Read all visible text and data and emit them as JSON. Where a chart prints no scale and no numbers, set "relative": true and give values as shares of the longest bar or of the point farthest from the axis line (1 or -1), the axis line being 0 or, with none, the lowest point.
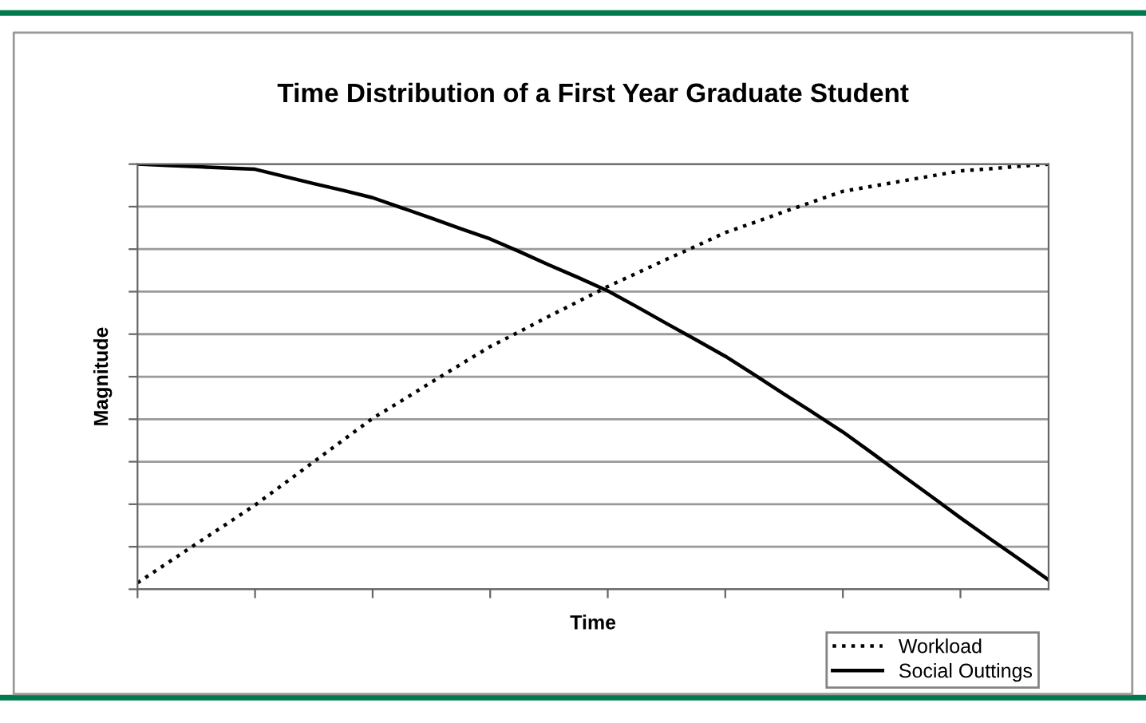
{
  "chart_data": {
    "type": "line",
    "title": "Time Distribution of a First Year Graduate Student",
    "xlabel": "Time",
    "ylabel": "Magnitude",
    "relative": true,
    "grid": "y",
    "legend": "bottom right",
    "categories": [
      null,
      null,
      null,
      null,
      null,
      null,
      null,
      null,
      null,
      null,
      null,
      null,
      null,
      null,
      null,
      null,
      null,
      null,
      null,
      null,
      null,
      null,
      null,
      null,
      null,
      null,
      null,
      null,
      null,
      null,
      null,
      null
    ],
    "series": [
      {
        "name": "Workload",
        "color": "#000000",
        "line_style": "dotted",
        "values": [
          0.015,
          0.061,
          0.107,
          0.152,
          0.198,
          0.249,
          0.3,
          0.351,
          0.402,
          0.444,
          0.487,
          0.529,
          0.571,
          0.606,
          0.642,
          0.677,
          0.712,
          0.744,
          0.776,
          0.807,
          0.839,
          0.863,
          0.888,
          0.912,
          0.936,
          0.948,
          0.96,
          0.972,
          0.984,
          0.989,
          0.995,
          1.0
        ]
      },
      {
        "name": "Social Outtings",
        "color": "#000000",
        "line_style": "solid",
        "values": [
          1.0,
          0.997,
          0.994,
          0.991,
          0.988,
          0.971,
          0.954,
          0.938,
          0.921,
          0.897,
          0.873,
          0.848,
          0.824,
          0.794,
          0.763,
          0.733,
          0.702,
          0.664,
          0.625,
          0.587,
          0.548,
          0.504,
          0.459,
          0.415,
          0.37,
          0.32,
          0.269,
          0.219,
          0.168,
          0.119,
          0.071,
          0.022
        ]
      }
    ]
  }
}
